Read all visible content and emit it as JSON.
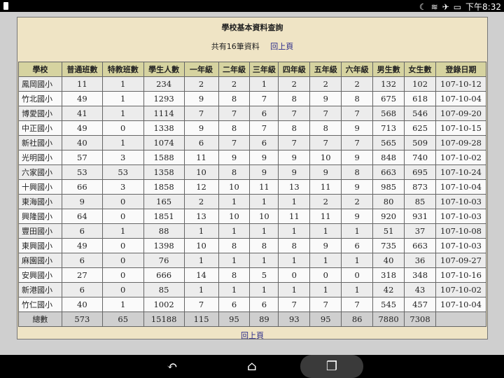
{
  "status_bar": {
    "time": "下午8:32",
    "icons": [
      "sim-icon",
      "moon-icon",
      "wifi-icon",
      "airplane-icon",
      "battery-icon"
    ]
  },
  "page": {
    "title": "學校基本資料查詢",
    "count_text": "共有16筆資料",
    "back_link": "回上頁",
    "bottom_back_link": "回上頁"
  },
  "table": {
    "headers": [
      "學校",
      "普通班數",
      "特教班數",
      "學生人數",
      "一年級",
      "二年級",
      "三年級",
      "四年級",
      "五年級",
      "六年級",
      "男生數",
      "女生數",
      "登錄日期"
    ],
    "rows": [
      [
        "鳳岡國小",
        "11",
        "1",
        "234",
        "2",
        "2",
        "1",
        "2",
        "2",
        "2",
        "132",
        "102",
        "107-10-12"
      ],
      [
        "竹北國小",
        "49",
        "1",
        "1293",
        "9",
        "8",
        "7",
        "8",
        "9",
        "8",
        "675",
        "618",
        "107-10-04"
      ],
      [
        "博愛國小",
        "41",
        "1",
        "1114",
        "7",
        "7",
        "6",
        "7",
        "7",
        "7",
        "568",
        "546",
        "107-09-20"
      ],
      [
        "中正國小",
        "49",
        "0",
        "1338",
        "9",
        "8",
        "7",
        "8",
        "8",
        "9",
        "713",
        "625",
        "107-10-15"
      ],
      [
        "新社國小",
        "40",
        "1",
        "1074",
        "6",
        "7",
        "6",
        "7",
        "7",
        "7",
        "565",
        "509",
        "107-09-28"
      ],
      [
        "光明國小",
        "57",
        "3",
        "1588",
        "11",
        "9",
        "9",
        "9",
        "10",
        "9",
        "848",
        "740",
        "107-10-02"
      ],
      [
        "六家國小",
        "53",
        "53",
        "1358",
        "10",
        "8",
        "9",
        "9",
        "9",
        "8",
        "663",
        "695",
        "107-10-24"
      ],
      [
        "十興國小",
        "66",
        "3",
        "1858",
        "12",
        "10",
        "11",
        "13",
        "11",
        "9",
        "985",
        "873",
        "107-10-04"
      ],
      [
        "東海國小",
        "9",
        "0",
        "165",
        "2",
        "1",
        "1",
        "1",
        "2",
        "2",
        "80",
        "85",
        "107-10-03"
      ],
      [
        "興隆國小",
        "64",
        "0",
        "1851",
        "13",
        "10",
        "10",
        "11",
        "11",
        "9",
        "920",
        "931",
        "107-10-03"
      ],
      [
        "豐田國小",
        "6",
        "1",
        "88",
        "1",
        "1",
        "1",
        "1",
        "1",
        "1",
        "51",
        "37",
        "107-10-08"
      ],
      [
        "東興國小",
        "49",
        "0",
        "1398",
        "10",
        "8",
        "8",
        "8",
        "9",
        "6",
        "735",
        "663",
        "107-10-03"
      ],
      [
        "麻園國小",
        "6",
        "0",
        "76",
        "1",
        "1",
        "1",
        "1",
        "1",
        "1",
        "40",
        "36",
        "107-09-27"
      ],
      [
        "安興國小",
        "27",
        "0",
        "666",
        "14",
        "8",
        "5",
        "0",
        "0",
        "0",
        "318",
        "348",
        "107-10-16"
      ],
      [
        "新港國小",
        "6",
        "0",
        "85",
        "1",
        "1",
        "1",
        "1",
        "1",
        "1",
        "42",
        "43",
        "107-10-02"
      ],
      [
        "竹仁國小",
        "40",
        "1",
        "1002",
        "7",
        "6",
        "6",
        "7",
        "7",
        "7",
        "545",
        "457",
        "107-10-04"
      ]
    ],
    "total": [
      "總數",
      "573",
      "65",
      "15188",
      "115",
      "95",
      "89",
      "93",
      "95",
      "86",
      "7880",
      "7308",
      ""
    ]
  },
  "nav_bar": {
    "buttons": [
      "back-icon",
      "home-icon",
      "recents-icon"
    ]
  }
}
